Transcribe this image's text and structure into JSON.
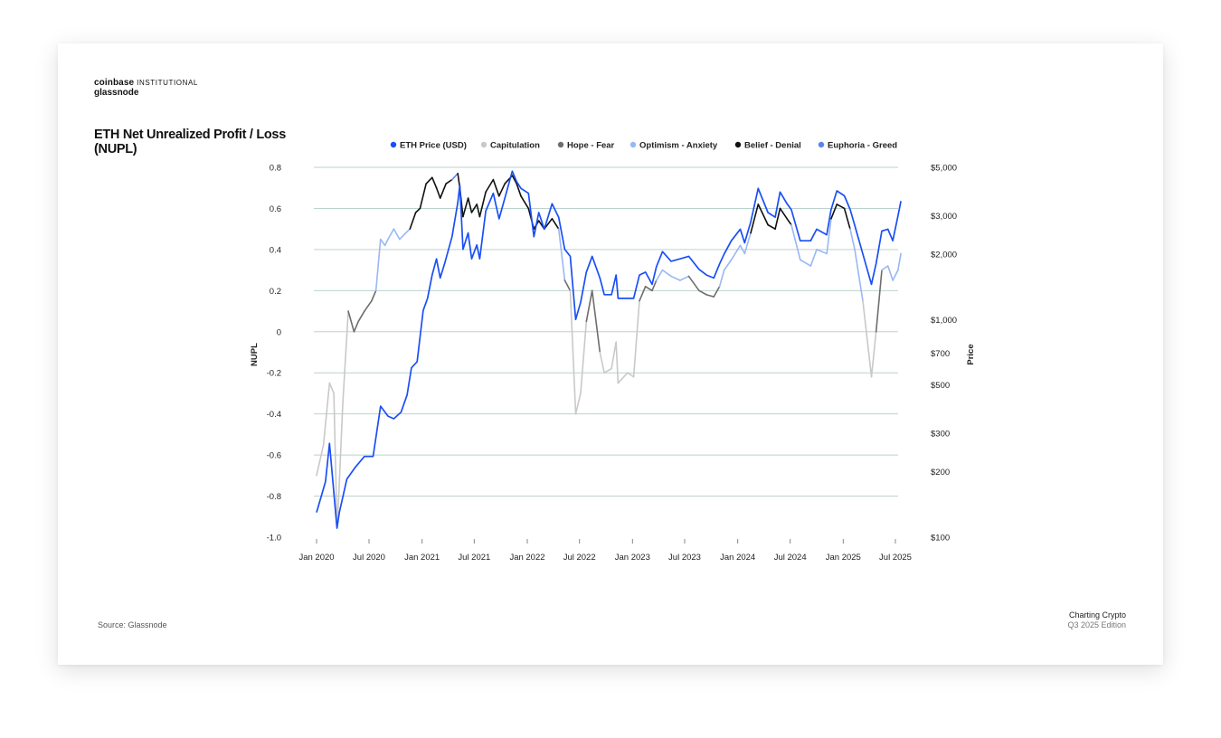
{
  "brand": {
    "line1": "coinbase",
    "line1_sub": "INSTITUTIONAL",
    "line2": "glassnode"
  },
  "title": "ETH Net Unrealized Profit / Loss (NUPL)",
  "source": "Source: Glassnode",
  "edition": {
    "line1": "Charting Crypto",
    "line2": "Q3 2025 Edition"
  },
  "colors": {
    "eth_price": "#1a4ff5",
    "capitulation": "#c9c9c9",
    "hope_fear": "#6e6e6e",
    "optimism_anxiety": "#9ab7f5",
    "belief_denial": "#111111",
    "euphoria_greed": "#5d82f2",
    "grid": "#bcd2ce"
  },
  "chart_data": {
    "type": "line",
    "x_tick_labels": [
      "Jan 2020",
      "Jul 2020",
      "Jan 2021",
      "Jul 2021",
      "Jan 2022",
      "Jul 2022",
      "Jan 2023",
      "Jul 2023",
      "Jan 2024",
      "Jul 2024",
      "Jan 2025",
      "Jul 2025"
    ],
    "x_ticks": [
      "2020-01",
      "2020-07",
      "2021-01",
      "2021-07",
      "2022-01",
      "2022-07",
      "2023-01",
      "2023-07",
      "2024-01",
      "2024-07",
      "2025-01",
      "2025-07"
    ],
    "ylabel_left": "NUPL",
    "ylabel_right": "Price",
    "ylim_left": [
      -1.0,
      0.8
    ],
    "y_left_ticks": [
      "0.8",
      "0.6",
      "0.4",
      "0.2",
      "0",
      "-0.2",
      "-0.4",
      "-0.6",
      "-0.8",
      "-1.0"
    ],
    "y_left_tick_values": [
      0.8,
      0.6,
      0.4,
      0.2,
      0,
      -0.2,
      -0.4,
      -0.6,
      -0.8,
      -1.0
    ],
    "y_right_scale": "log",
    "ylim_right": [
      100,
      5000
    ],
    "y_right_ticks": [
      "$5,000",
      "$3,000",
      "$2,000",
      "$1,000",
      "$700",
      "$500",
      "$300",
      "$200",
      "$100"
    ],
    "y_right_tick_values": [
      5000,
      3000,
      2000,
      1000,
      700,
      500,
      300,
      200,
      100
    ],
    "grid": true,
    "legend_position": "top",
    "legend": [
      "ETH Price (USD)",
      "Capitulation",
      "Hope - Fear",
      "Optimism - Anxiety",
      "Belief - Denial",
      "Euphoria - Greed"
    ],
    "nupl_zones": [
      {
        "name": "Capitulation",
        "range": [
          -1.0,
          0.0
        ]
      },
      {
        "name": "Hope - Fear",
        "range": [
          0.0,
          0.25
        ]
      },
      {
        "name": "Optimism - Anxiety",
        "range": [
          0.25,
          0.5
        ]
      },
      {
        "name": "Belief - Denial",
        "range": [
          0.5,
          0.75
        ]
      },
      {
        "name": "Euphoria - Greed",
        "range": [
          0.75,
          1.0
        ]
      }
    ],
    "series": [
      {
        "name": "ETH Price (USD)",
        "axis": "right",
        "x": [
          "2020-01-01",
          "2020-02-01",
          "2020-02-15",
          "2020-03-12",
          "2020-03-20",
          "2020-04-15",
          "2020-05-15",
          "2020-06-15",
          "2020-07-15",
          "2020-08-10",
          "2020-09-05",
          "2020-09-25",
          "2020-10-20",
          "2020-11-10",
          "2020-11-25",
          "2020-12-15",
          "2021-01-05",
          "2021-01-20",
          "2021-02-05",
          "2021-02-20",
          "2021-03-05",
          "2021-03-20",
          "2021-04-15",
          "2021-05-05",
          "2021-05-12",
          "2021-05-23",
          "2021-06-10",
          "2021-06-22",
          "2021-07-10",
          "2021-07-20",
          "2021-08-10",
          "2021-09-05",
          "2021-09-25",
          "2021-10-15",
          "2021-11-10",
          "2021-11-25",
          "2021-12-10",
          "2022-01-05",
          "2022-01-24",
          "2022-02-10",
          "2022-03-01",
          "2022-03-28",
          "2022-04-20",
          "2022-05-11",
          "2022-05-30",
          "2022-06-18",
          "2022-07-05",
          "2022-07-25",
          "2022-08-14",
          "2022-09-10",
          "2022-09-25",
          "2022-10-20",
          "2022-11-05",
          "2022-11-12",
          "2022-12-15",
          "2023-01-05",
          "2023-01-25",
          "2023-02-15",
          "2023-03-10",
          "2023-03-25",
          "2023-04-15",
          "2023-05-15",
          "2023-06-15",
          "2023-07-15",
          "2023-08-20",
          "2023-09-15",
          "2023-10-10",
          "2023-10-30",
          "2023-11-15",
          "2023-12-10",
          "2024-01-10",
          "2024-01-25",
          "2024-02-15",
          "2024-03-12",
          "2024-04-15",
          "2024-05-10",
          "2024-05-27",
          "2024-06-20",
          "2024-07-05",
          "2024-08-05",
          "2024-09-10",
          "2024-10-01",
          "2024-11-05",
          "2024-11-20",
          "2024-12-10",
          "2025-01-05",
          "2025-01-25",
          "2025-02-10",
          "2025-03-10",
          "2025-04-09",
          "2025-04-25",
          "2025-05-15",
          "2025-06-05",
          "2025-06-22",
          "2025-07-10",
          "2025-07-20"
        ],
        "values": [
          130,
          180,
          270,
          110,
          130,
          185,
          210,
          235,
          235,
          400,
          360,
          350,
          375,
          450,
          600,
          640,
          1100,
          1250,
          1600,
          1900,
          1550,
          1800,
          2400,
          3450,
          4150,
          2100,
          2500,
          1900,
          2200,
          1900,
          3150,
          3800,
          2900,
          3600,
          4800,
          4300,
          4000,
          3800,
          2400,
          3100,
          2600,
          3400,
          2950,
          2100,
          1950,
          1000,
          1200,
          1650,
          1950,
          1550,
          1300,
          1300,
          1600,
          1250,
          1250,
          1250,
          1600,
          1650,
          1450,
          1750,
          2050,
          1850,
          1900,
          1950,
          1700,
          1600,
          1550,
          1800,
          2000,
          2300,
          2600,
          2250,
          2800,
          4000,
          3100,
          2950,
          3850,
          3400,
          3200,
          2300,
          2300,
          2600,
          2450,
          3200,
          3900,
          3700,
          3200,
          2700,
          2000,
          1450,
          1800,
          2550,
          2600,
          2300,
          3000,
          3500
        ]
      },
      {
        "name": "NUPL",
        "axis": "left",
        "x": [
          "2020-01-01",
          "2020-01-25",
          "2020-02-15",
          "2020-03-01",
          "2020-03-12",
          "2020-03-18",
          "2020-04-01",
          "2020-04-20",
          "2020-05-10",
          "2020-05-25",
          "2020-06-15",
          "2020-07-10",
          "2020-07-25",
          "2020-08-10",
          "2020-08-25",
          "2020-09-05",
          "2020-09-25",
          "2020-10-15",
          "2020-11-05",
          "2020-11-20",
          "2020-12-10",
          "2020-12-25",
          "2021-01-15",
          "2021-02-05",
          "2021-02-20",
          "2021-03-05",
          "2021-03-25",
          "2021-04-15",
          "2021-05-05",
          "2021-05-12",
          "2021-05-23",
          "2021-06-10",
          "2021-06-22",
          "2021-07-10",
          "2021-07-20",
          "2021-08-10",
          "2021-09-05",
          "2021-09-25",
          "2021-10-15",
          "2021-11-10",
          "2021-11-25",
          "2021-12-10",
          "2022-01-05",
          "2022-01-24",
          "2022-02-10",
          "2022-03-01",
          "2022-03-28",
          "2022-04-20",
          "2022-05-11",
          "2022-05-30",
          "2022-06-18",
          "2022-07-05",
          "2022-07-25",
          "2022-08-14",
          "2022-09-10",
          "2022-09-25",
          "2022-10-20",
          "2022-11-05",
          "2022-11-12",
          "2022-12-15",
          "2023-01-05",
          "2023-01-25",
          "2023-02-15",
          "2023-03-10",
          "2023-03-25",
          "2023-04-15",
          "2023-05-15",
          "2023-06-15",
          "2023-07-15",
          "2023-08-20",
          "2023-09-15",
          "2023-10-10",
          "2023-10-30",
          "2023-11-15",
          "2023-12-10",
          "2024-01-10",
          "2024-01-25",
          "2024-02-15",
          "2024-03-12",
          "2024-04-15",
          "2024-05-10",
          "2024-05-27",
          "2024-06-20",
          "2024-07-05",
          "2024-08-05",
          "2024-09-10",
          "2024-10-01",
          "2024-11-05",
          "2024-11-20",
          "2024-12-10",
          "2025-01-05",
          "2025-01-25",
          "2025-02-10",
          "2025-03-10",
          "2025-04-09",
          "2025-04-25",
          "2025-05-15",
          "2025-06-05",
          "2025-06-22",
          "2025-07-10",
          "2025-07-20"
        ],
        "values": [
          -0.7,
          -0.55,
          -0.25,
          -0.3,
          -0.95,
          -0.8,
          -0.35,
          0.1,
          0.0,
          0.05,
          0.1,
          0.15,
          0.2,
          0.45,
          0.42,
          0.45,
          0.5,
          0.45,
          0.48,
          0.5,
          0.58,
          0.6,
          0.72,
          0.75,
          0.7,
          0.65,
          0.72,
          0.74,
          0.77,
          0.7,
          0.56,
          0.65,
          0.58,
          0.62,
          0.56,
          0.68,
          0.74,
          0.66,
          0.72,
          0.76,
          0.72,
          0.66,
          0.6,
          0.5,
          0.54,
          0.5,
          0.55,
          0.5,
          0.25,
          0.2,
          -0.4,
          -0.3,
          0.05,
          0.2,
          -0.1,
          -0.2,
          -0.18,
          -0.05,
          -0.25,
          -0.2,
          -0.22,
          0.15,
          0.22,
          0.2,
          0.25,
          0.3,
          0.27,
          0.25,
          0.27,
          0.2,
          0.18,
          0.17,
          0.22,
          0.3,
          0.35,
          0.42,
          0.38,
          0.48,
          0.62,
          0.52,
          0.5,
          0.6,
          0.55,
          0.52,
          0.35,
          0.32,
          0.4,
          0.38,
          0.55,
          0.62,
          0.6,
          0.5,
          0.4,
          0.15,
          -0.22,
          0.0,
          0.3,
          0.32,
          0.25,
          0.3,
          0.38
        ]
      }
    ]
  }
}
